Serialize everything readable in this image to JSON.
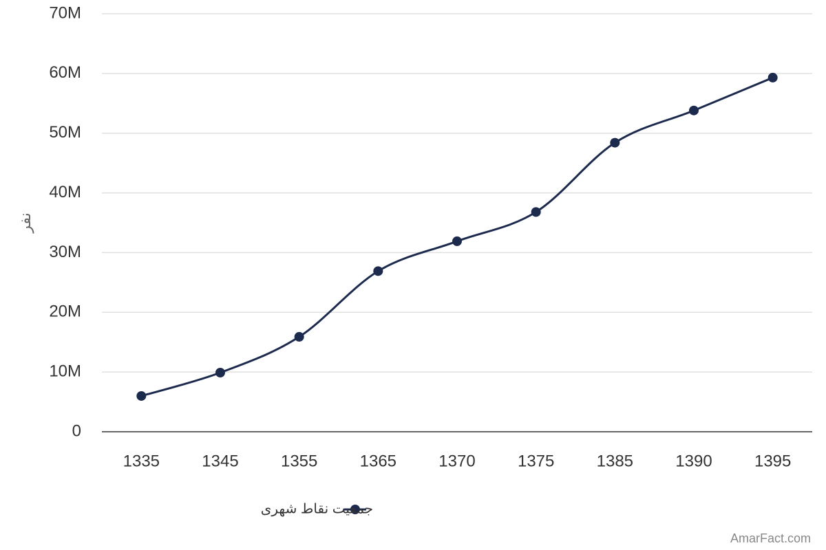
{
  "chart_data": {
    "type": "line",
    "y_label": "نفر",
    "categories": [
      "1335",
      "1345",
      "1355",
      "1365",
      "1370",
      "1375",
      "1385",
      "1390",
      "1395"
    ],
    "series": [
      {
        "name": "جمعیت نقاط شهری",
        "color": "#1c2a4d",
        "values": [
          5990000,
          9900000,
          15900000,
          26900000,
          31900000,
          36800000,
          48400000,
          53800000,
          59300000
        ]
      }
    ],
    "ylim": [
      0,
      70000000
    ],
    "yticks": [
      0,
      {
        "value": 10000000,
        "label": "10M"
      },
      {
        "value": 20000000,
        "label": "20M"
      },
      {
        "value": 30000000,
        "label": "30M"
      },
      {
        "value": 40000000,
        "label": "40M"
      },
      {
        "value": 50000000,
        "label": "50M"
      },
      {
        "value": 60000000,
        "label": "60M"
      },
      {
        "value": 70000000,
        "label": "70M"
      }
    ],
    "grid": true,
    "smooth": true,
    "credit": "AmarFact.com"
  }
}
